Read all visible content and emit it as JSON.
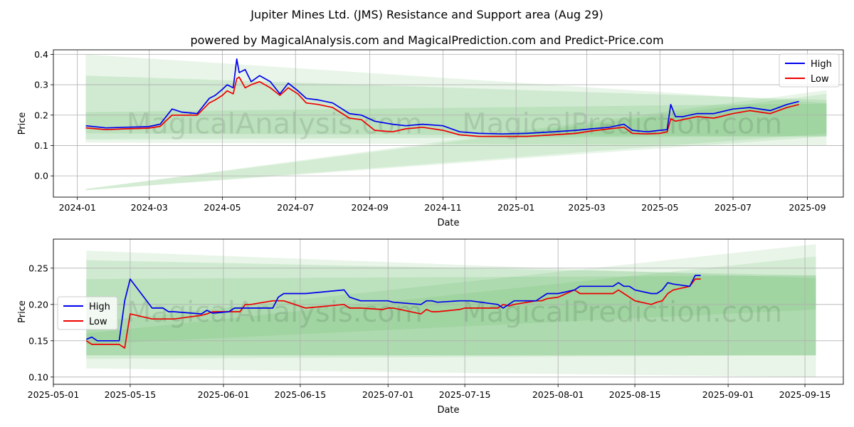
{
  "figure": {
    "title": "Jupiter Mines Ltd. (JMS) Resistance and Support area (Aug 29)",
    "subtitle": "powered by MagicalAnalysis.com and MagicalPrediction.com and Predict-Price.com",
    "watermarks": [
      "MagicalAnalysis.com",
      "MagicalPrediction.com"
    ]
  },
  "colors": {
    "high": "#0000ee",
    "low": "#ee0000",
    "band": "#4caf50",
    "grid": "#b0b0b0"
  },
  "chart_data": [
    {
      "type": "line",
      "xlabel": "Date",
      "ylabel": "Price",
      "x_range": [
        "2023-12-12",
        "2025-10-01"
      ],
      "ylim": [
        -0.07,
        0.415
      ],
      "x_ticks": [
        "2024-01",
        "2024-03",
        "2024-05",
        "2024-07",
        "2024-09",
        "2024-11",
        "2025-01",
        "2025-03",
        "2025-05",
        "2025-07",
        "2025-09"
      ],
      "y_ticks": [
        "0.0",
        "0.1",
        "0.2",
        "0.3",
        "0.4"
      ],
      "grid": true,
      "legend": "top-right",
      "bands": [
        {
          "x": [
            "2024-01-08",
            "2025-09-17"
          ],
          "upper": [
            0.4,
            0.24
          ],
          "lower": [
            0.11,
            0.1
          ],
          "opacity": 0.13
        },
        {
          "x": [
            "2024-01-08",
            "2025-09-17"
          ],
          "upper": [
            0.33,
            0.25
          ],
          "lower": [
            0.14,
            0.13
          ],
          "opacity": 0.15
        },
        {
          "x": [
            "2024-01-08",
            "2025-09-17"
          ],
          "upper": [
            0.21,
            0.238
          ],
          "lower": [
            0.12,
            0.13
          ],
          "opacity": 0.15
        },
        {
          "x": [
            "2024-01-08",
            "2025-09-17"
          ],
          "upper": [
            -0.043,
            0.282
          ],
          "lower": [
            -0.047,
            0.13
          ],
          "opacity": 0.13
        },
        {
          "x": [
            "2024-01-08",
            "2025-09-17"
          ],
          "upper": [
            -0.043,
            0.27
          ],
          "lower": [
            -0.047,
            0.14
          ],
          "opacity": 0.13
        }
      ],
      "series": [
        {
          "name": "High",
          "x": [
            "2024-01-08",
            "2024-01-25",
            "2024-02-10",
            "2024-02-29",
            "2024-03-10",
            "2024-03-20",
            "2024-03-28",
            "2024-04-10",
            "2024-04-20",
            "2024-04-25",
            "2024-05-01",
            "2024-05-05",
            "2024-05-10",
            "2024-05-13",
            "2024-05-15",
            "2024-05-20",
            "2024-05-25",
            "2024-06-01",
            "2024-06-10",
            "2024-06-18",
            "2024-06-25",
            "2024-07-03",
            "2024-07-10",
            "2024-07-20",
            "2024-08-01",
            "2024-08-15",
            "2024-08-25",
            "2024-09-05",
            "2024-09-20",
            "2024-10-01",
            "2024-10-15",
            "2024-11-01",
            "2024-11-15",
            "2024-12-01",
            "2024-12-20",
            "2025-01-10",
            "2025-02-01",
            "2025-02-20",
            "2025-03-05",
            "2025-03-20",
            "2025-04-01",
            "2025-04-08",
            "2025-04-20",
            "2025-05-01",
            "2025-05-07",
            "2025-05-10",
            "2025-05-14",
            "2025-05-20",
            "2025-06-01",
            "2025-06-15",
            "2025-07-01",
            "2025-07-15",
            "2025-08-01",
            "2025-08-15",
            "2025-08-25"
          ],
          "values": [
            0.165,
            0.158,
            0.16,
            0.162,
            0.17,
            0.22,
            0.21,
            0.205,
            0.255,
            0.265,
            0.285,
            0.3,
            0.29,
            0.385,
            0.34,
            0.35,
            0.31,
            0.33,
            0.31,
            0.27,
            0.305,
            0.28,
            0.255,
            0.25,
            0.24,
            0.205,
            0.2,
            0.18,
            0.17,
            0.165,
            0.17,
            0.165,
            0.145,
            0.14,
            0.138,
            0.14,
            0.145,
            0.15,
            0.155,
            0.16,
            0.17,
            0.15,
            0.145,
            0.15,
            0.152,
            0.235,
            0.195,
            0.195,
            0.205,
            0.205,
            0.22,
            0.225,
            0.215,
            0.235,
            0.245
          ]
        },
        {
          "name": "Low",
          "x": [
            "2024-01-08",
            "2024-01-25",
            "2024-02-10",
            "2024-02-29",
            "2024-03-10",
            "2024-03-20",
            "2024-03-28",
            "2024-04-10",
            "2024-04-20",
            "2024-04-25",
            "2024-05-01",
            "2024-05-05",
            "2024-05-10",
            "2024-05-13",
            "2024-05-15",
            "2024-05-20",
            "2024-05-25",
            "2024-06-01",
            "2024-06-10",
            "2024-06-18",
            "2024-06-25",
            "2024-07-03",
            "2024-07-10",
            "2024-07-20",
            "2024-08-01",
            "2024-08-15",
            "2024-08-25",
            "2024-09-05",
            "2024-09-20",
            "2024-10-01",
            "2024-10-15",
            "2024-11-01",
            "2024-11-15",
            "2024-12-01",
            "2024-12-20",
            "2025-01-10",
            "2025-02-01",
            "2025-02-20",
            "2025-03-05",
            "2025-03-20",
            "2025-04-01",
            "2025-04-08",
            "2025-04-20",
            "2025-05-01",
            "2025-05-07",
            "2025-05-10",
            "2025-05-14",
            "2025-05-20",
            "2025-06-01",
            "2025-06-15",
            "2025-07-01",
            "2025-07-15",
            "2025-08-01",
            "2025-08-15",
            "2025-08-25"
          ],
          "values": [
            0.158,
            0.152,
            0.155,
            0.157,
            0.163,
            0.2,
            0.2,
            0.2,
            0.24,
            0.25,
            0.265,
            0.28,
            0.27,
            0.32,
            0.325,
            0.29,
            0.3,
            0.31,
            0.29,
            0.265,
            0.29,
            0.27,
            0.24,
            0.235,
            0.225,
            0.19,
            0.185,
            0.15,
            0.145,
            0.155,
            0.16,
            0.15,
            0.135,
            0.13,
            0.13,
            0.13,
            0.135,
            0.14,
            0.148,
            0.155,
            0.16,
            0.14,
            0.138,
            0.14,
            0.145,
            0.188,
            0.18,
            0.185,
            0.195,
            0.19,
            0.205,
            0.215,
            0.205,
            0.225,
            0.235
          ]
        }
      ]
    },
    {
      "type": "line",
      "xlabel": "Date",
      "ylabel": "Price",
      "x_range": [
        "2025-05-01",
        "2025-09-22"
      ],
      "ylim": [
        0.09,
        0.29
      ],
      "x_ticks": [
        "2025-05-01",
        "2025-05-15",
        "2025-06-01",
        "2025-06-15",
        "2025-07-01",
        "2025-07-15",
        "2025-08-01",
        "2025-08-15",
        "2025-09-01",
        "2025-09-15"
      ],
      "y_ticks": [
        "0.10",
        "0.15",
        "0.20",
        "0.25"
      ],
      "grid": true,
      "legend": "center-left",
      "bands": [
        {
          "x": [
            "2025-05-07",
            "2025-09-17"
          ],
          "upper": [
            0.274,
            0.236
          ],
          "lower": [
            0.112,
            0.1
          ],
          "opacity": 0.13
        },
        {
          "x": [
            "2025-05-07",
            "2025-09-17"
          ],
          "upper": [
            0.261,
            0.24
          ],
          "lower": [
            0.13,
            0.13
          ],
          "opacity": 0.15
        },
        {
          "x": [
            "2025-05-07",
            "2025-09-17"
          ],
          "upper": [
            0.235,
            0.24
          ],
          "lower": [
            0.13,
            0.13
          ],
          "opacity": 0.15
        },
        {
          "x": [
            "2025-05-07",
            "2025-09-17"
          ],
          "upper": [
            0.175,
            0.283
          ],
          "lower": [
            0.125,
            0.13
          ],
          "opacity": 0.13
        },
        {
          "x": [
            "2025-05-07",
            "2025-09-17"
          ],
          "upper": [
            0.16,
            0.266
          ],
          "lower": [
            0.145,
            0.193
          ],
          "opacity": 0.13
        }
      ],
      "series": [
        {
          "name": "High",
          "x": [
            "2025-05-07",
            "2025-05-08",
            "2025-05-09",
            "2025-05-12",
            "2025-05-13",
            "2025-05-14",
            "2025-05-15",
            "2025-05-19",
            "2025-05-20",
            "2025-05-21",
            "2025-05-22",
            "2025-05-23",
            "2025-05-28",
            "2025-05-29",
            "2025-05-30",
            "2025-06-02",
            "2025-06-03",
            "2025-06-04",
            "2025-06-05",
            "2025-06-06",
            "2025-06-10",
            "2025-06-11",
            "2025-06-12",
            "2025-06-16",
            "2025-06-23",
            "2025-06-24",
            "2025-06-26",
            "2025-06-30",
            "2025-07-01",
            "2025-07-02",
            "2025-07-07",
            "2025-07-08",
            "2025-07-09",
            "2025-07-10",
            "2025-07-14",
            "2025-07-15",
            "2025-07-16",
            "2025-07-21",
            "2025-07-22",
            "2025-07-23",
            "2025-07-24",
            "2025-07-28",
            "2025-07-29",
            "2025-07-30",
            "2025-08-01",
            "2025-08-04",
            "2025-08-05",
            "2025-08-06",
            "2025-08-07",
            "2025-08-11",
            "2025-08-12",
            "2025-08-13",
            "2025-08-14",
            "2025-08-15",
            "2025-08-18",
            "2025-08-19",
            "2025-08-20",
            "2025-08-21",
            "2025-08-22",
            "2025-08-25",
            "2025-08-26",
            "2025-08-27"
          ],
          "values": [
            0.152,
            0.155,
            0.15,
            0.15,
            0.15,
            0.205,
            0.235,
            0.195,
            0.195,
            0.195,
            0.19,
            0.19,
            0.187,
            0.192,
            0.188,
            0.19,
            0.195,
            0.195,
            0.195,
            0.195,
            0.195,
            0.21,
            0.215,
            0.215,
            0.22,
            0.21,
            0.205,
            0.205,
            0.205,
            0.203,
            0.2,
            0.205,
            0.205,
            0.203,
            0.205,
            0.205,
            0.205,
            0.2,
            0.195,
            0.2,
            0.205,
            0.205,
            0.21,
            0.215,
            0.215,
            0.22,
            0.225,
            0.225,
            0.225,
            0.225,
            0.23,
            0.225,
            0.225,
            0.22,
            0.215,
            0.215,
            0.22,
            0.23,
            0.228,
            0.225,
            0.24,
            0.24
          ]
        },
        {
          "name": "Low",
          "x": [
            "2025-05-07",
            "2025-05-08",
            "2025-05-09",
            "2025-05-12",
            "2025-05-13",
            "2025-05-14",
            "2025-05-15",
            "2025-05-19",
            "2025-05-20",
            "2025-05-21",
            "2025-05-22",
            "2025-05-23",
            "2025-05-28",
            "2025-05-29",
            "2025-05-30",
            "2025-06-02",
            "2025-06-03",
            "2025-06-04",
            "2025-06-05",
            "2025-06-06",
            "2025-06-10",
            "2025-06-11",
            "2025-06-12",
            "2025-06-16",
            "2025-06-23",
            "2025-06-24",
            "2025-06-26",
            "2025-06-30",
            "2025-07-01",
            "2025-07-02",
            "2025-07-07",
            "2025-07-08",
            "2025-07-09",
            "2025-07-10",
            "2025-07-14",
            "2025-07-15",
            "2025-07-16",
            "2025-07-21",
            "2025-07-22",
            "2025-07-23",
            "2025-07-24",
            "2025-07-28",
            "2025-07-29",
            "2025-07-30",
            "2025-08-01",
            "2025-08-04",
            "2025-08-05",
            "2025-08-06",
            "2025-08-07",
            "2025-08-11",
            "2025-08-12",
            "2025-08-13",
            "2025-08-14",
            "2025-08-15",
            "2025-08-18",
            "2025-08-19",
            "2025-08-20",
            "2025-08-21",
            "2025-08-22",
            "2025-08-25",
            "2025-08-26",
            "2025-08-27"
          ],
          "values": [
            0.15,
            0.145,
            0.145,
            0.145,
            0.145,
            0.14,
            0.187,
            0.18,
            0.18,
            0.18,
            0.18,
            0.18,
            0.185,
            0.187,
            0.19,
            0.19,
            0.19,
            0.19,
            0.2,
            0.2,
            0.205,
            0.205,
            0.205,
            0.195,
            0.2,
            0.195,
            0.195,
            0.193,
            0.195,
            0.195,
            0.187,
            0.193,
            0.19,
            0.19,
            0.193,
            0.195,
            0.195,
            0.195,
            0.2,
            0.198,
            0.2,
            0.205,
            0.205,
            0.208,
            0.21,
            0.22,
            0.215,
            0.215,
            0.215,
            0.215,
            0.22,
            0.215,
            0.21,
            0.205,
            0.2,
            0.203,
            0.205,
            0.215,
            0.22,
            0.225,
            0.235,
            0.235
          ]
        }
      ]
    }
  ]
}
